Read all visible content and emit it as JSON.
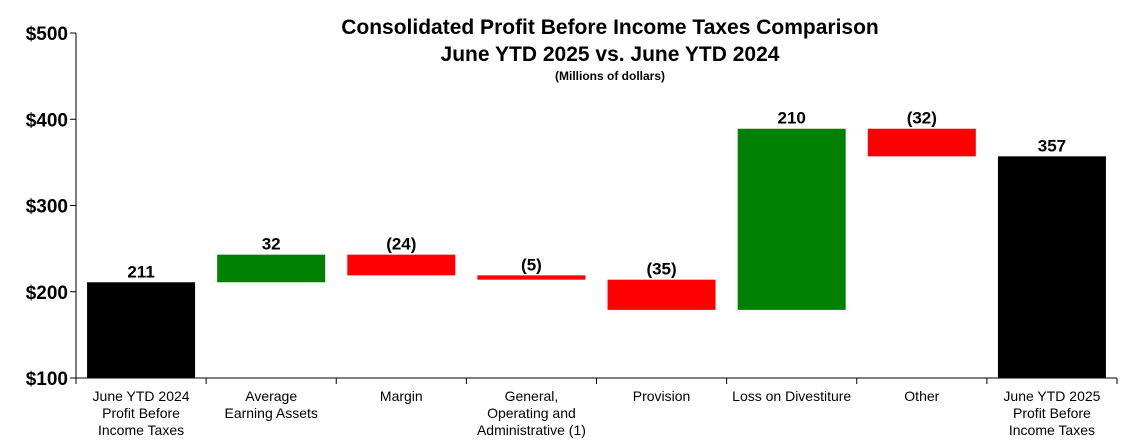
{
  "chart_data": {
    "type": "waterfall",
    "title": "Consolidated Profit Before Income Taxes Comparison",
    "subtitle": "June YTD 2025 vs. June YTD 2024",
    "units_note": "(Millions of dollars)",
    "ylim": [
      100,
      500
    ],
    "yticks": [
      100,
      200,
      300,
      400,
      500
    ],
    "ytick_labels": [
      "$100",
      "$200",
      "$300",
      "$400",
      "$500"
    ],
    "colors": {
      "total": "#000000",
      "increase": "#008000",
      "decrease": "#ff0000"
    },
    "bars": [
      {
        "category": [
          "June YTD 2024",
          "Profit Before",
          "Income Taxes"
        ],
        "kind": "total",
        "value": 211,
        "label": "211"
      },
      {
        "category": [
          "Average",
          "Earning Assets"
        ],
        "kind": "increase",
        "value": 32,
        "label": "32"
      },
      {
        "category": [
          "Margin"
        ],
        "kind": "decrease",
        "value": -24,
        "label": "(24)"
      },
      {
        "category": [
          "General,",
          "Operating and",
          "Administrative (1)"
        ],
        "kind": "decrease",
        "value": -5,
        "label": "(5)"
      },
      {
        "category": [
          "Provision"
        ],
        "kind": "decrease",
        "value": -35,
        "label": "(35)"
      },
      {
        "category": [
          "Loss on Divestiture"
        ],
        "kind": "increase",
        "value": 210,
        "label": "210"
      },
      {
        "category": [
          "Other"
        ],
        "kind": "decrease",
        "value": -32,
        "label": "(32)"
      },
      {
        "category": [
          "June YTD 2025",
          "Profit Before",
          "Income Taxes"
        ],
        "kind": "total",
        "value": 357,
        "label": "357"
      }
    ]
  }
}
